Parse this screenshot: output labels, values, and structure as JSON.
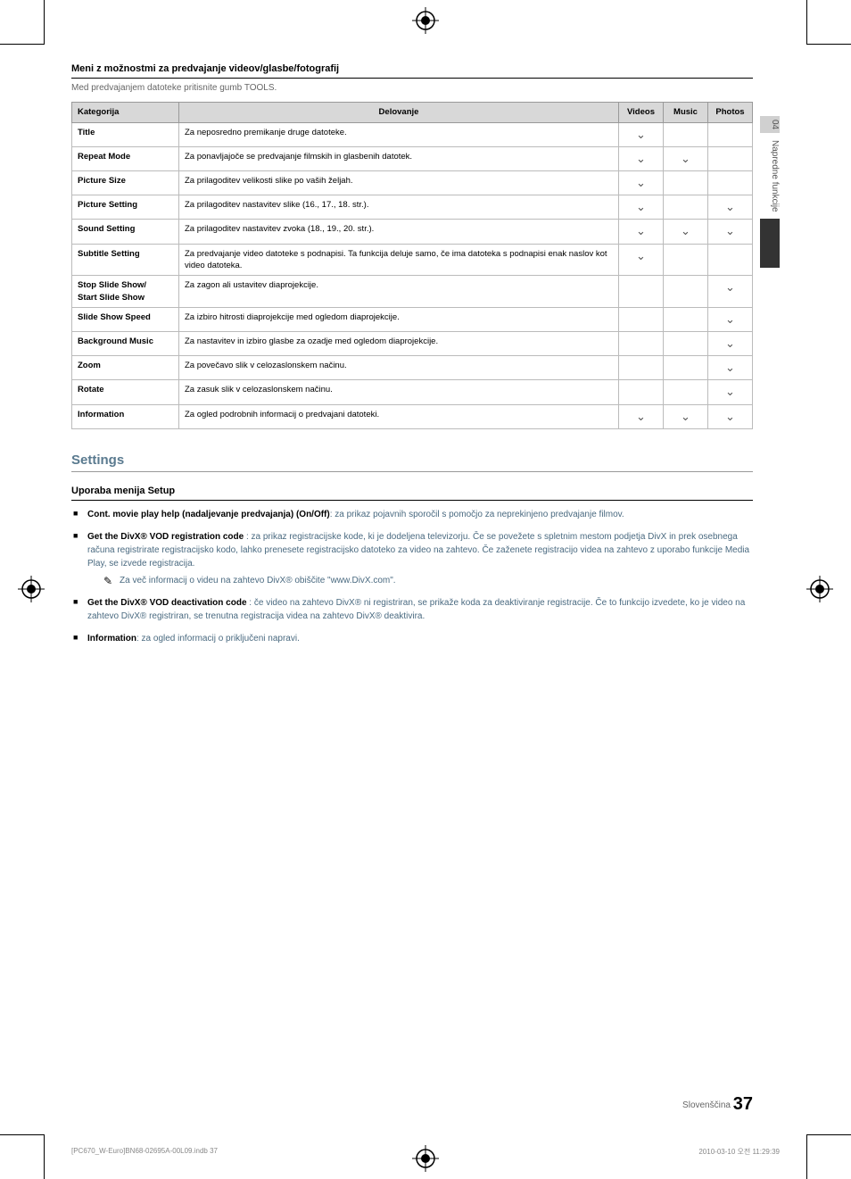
{
  "sideTab": {
    "number": "04",
    "label": "Napredne funkcije"
  },
  "section": {
    "title": "Meni z možnostmi za predvajanje videov/glasbe/fotografij",
    "intro": "Med predvajanjem datoteke pritisnite gumb TOOLS."
  },
  "table": {
    "headers": {
      "category": "Kategorija",
      "action": "Delovanje",
      "videos": "Videos",
      "music": "Music",
      "photos": "Photos"
    },
    "rows": [
      {
        "cat": "Title",
        "act": "Za neposredno premikanje druge datoteke.",
        "v": true,
        "m": false,
        "p": false
      },
      {
        "cat": "Repeat Mode",
        "act": "Za ponavljajoče se predvajanje filmskih in glasbenih datotek.",
        "v": true,
        "m": true,
        "p": false
      },
      {
        "cat": "Picture Size",
        "act": "Za prilagoditev velikosti slike po vaših željah.",
        "v": true,
        "m": false,
        "p": false
      },
      {
        "cat": "Picture Setting",
        "act": "Za prilagoditev nastavitev slike (16., 17., 18. str.).",
        "v": true,
        "m": false,
        "p": true
      },
      {
        "cat": "Sound Setting",
        "act": "Za prilagoditev nastavitev zvoka (18., 19., 20. str.).",
        "v": true,
        "m": true,
        "p": true
      },
      {
        "cat": "Subtitle Setting",
        "act": "Za predvajanje video datoteke s podnapisi. Ta funkcija deluje samo, če ima datoteka s podnapisi enak naslov kot video datoteka.",
        "v": true,
        "m": false,
        "p": false
      },
      {
        "cat": "Stop Slide Show/\nStart Slide Show",
        "act": "Za zagon ali ustavitev diaprojekcije.",
        "v": false,
        "m": false,
        "p": true
      },
      {
        "cat": "Slide Show Speed",
        "act": "Za izbiro hitrosti diaprojekcije med ogledom diaprojekcije.",
        "v": false,
        "m": false,
        "p": true
      },
      {
        "cat": "Background Music",
        "act": "Za nastavitev in izbiro glasbe za ozadje med ogledom diaprojekcije.",
        "v": false,
        "m": false,
        "p": true
      },
      {
        "cat": "Zoom",
        "act": "Za povečavo slik v celozaslonskem načinu.",
        "v": false,
        "m": false,
        "p": true
      },
      {
        "cat": "Rotate",
        "act": "Za zasuk slik v celozaslonskem načinu.",
        "v": false,
        "m": false,
        "p": true
      },
      {
        "cat": "Information",
        "act": "Za ogled podrobnih informacij o predvajani datoteki.",
        "v": true,
        "m": true,
        "p": true
      }
    ]
  },
  "settings": {
    "heading": "Settings",
    "subheading": "Uporaba menija Setup",
    "items": [
      {
        "bold": "Cont. movie play help (nadaljevanje predvajanja) (On/Off)",
        "text": ": za prikaz pojavnih sporočil s pomočjo za neprekinjeno predvajanje filmov."
      },
      {
        "bold": "Get the DivX® VOD registration code",
        "text": " : za prikaz registracijske kode, ki je dodeljena televizorju. Če se povežete s spletnim mestom podjetja DivX in prek osebnega računa registrirate registracijsko kodo, lahko prenesete registracijsko datoteko za video na zahtevo. Če zaženete registracijo videa na zahtevo z uporabo funkcije Media Play, se izvede registracija.",
        "note": "Za več informacij o videu na zahtevo DivX® obiščite \"www.DivX.com\"."
      },
      {
        "bold": "Get the DivX® VOD deactivation code",
        "text": " : če video na zahtevo DivX® ni registriran, se prikaže koda za deaktiviranje registracije. Če to funkcijo izvedete, ko je video na zahtevo DivX® registriran, se trenutna registracija videa na zahtevo DivX® deaktivira."
      },
      {
        "bold": "Information",
        "text": ": za ogled informacij o priključeni napravi."
      }
    ]
  },
  "footer": {
    "lang": "Slovenščina",
    "page": "37"
  },
  "printFooter": {
    "left": "[PC670_W-Euro]BN68-02695A-00L09.indb   37",
    "right": "2010-03-10   오전 11:29:39"
  }
}
